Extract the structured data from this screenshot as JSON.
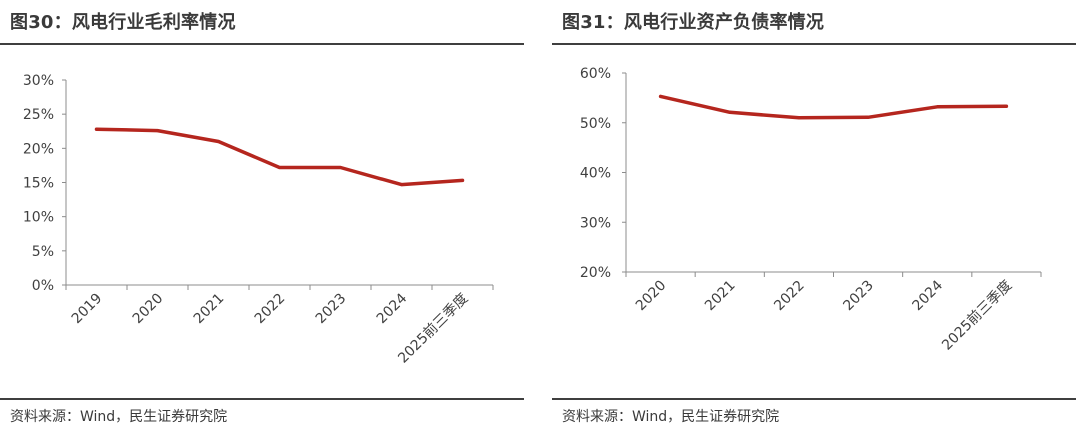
{
  "colors": {
    "line": "#b5261e",
    "axis": "#8c8c8c",
    "rule": "#3f3f3f"
  },
  "panels": [
    {
      "title": "图30：风电行业毛利率情况",
      "source": "资料来源：Wind，民生证券研究院"
    },
    {
      "title": "图31：风电行业资产负债率情况",
      "source": "资料来源：Wind，民生证券研究院"
    }
  ],
  "chart_data": [
    {
      "type": "line",
      "title": "图30：风电行业毛利率情况",
      "categories": [
        "2019",
        "2020",
        "2021",
        "2022",
        "2023",
        "2024",
        "2025前三季度"
      ],
      "values": [
        22.8,
        22.6,
        21.0,
        17.2,
        17.2,
        14.7,
        15.3
      ],
      "unit": "%",
      "ylim": [
        0,
        30
      ],
      "yticks": [
        0,
        5,
        10,
        15,
        20,
        25,
        30
      ],
      "ytick_labels": [
        "0%",
        "5%",
        "10%",
        "15%",
        "20%",
        "25%",
        "30%"
      ],
      "grid": false,
      "legend": "none"
    },
    {
      "type": "line",
      "title": "图31：风电行业资产负债率情况",
      "categories": [
        "2020",
        "2021",
        "2022",
        "2023",
        "2024",
        "2025前三季度"
      ],
      "values": [
        55.3,
        52.1,
        51.0,
        51.1,
        53.2,
        53.3
      ],
      "unit": "%",
      "ylim": [
        20,
        60
      ],
      "yticks": [
        20,
        30,
        40,
        50,
        60
      ],
      "ytick_labels": [
        "20%",
        "30%",
        "40%",
        "50%",
        "60%"
      ],
      "grid": false,
      "legend": "none"
    }
  ]
}
